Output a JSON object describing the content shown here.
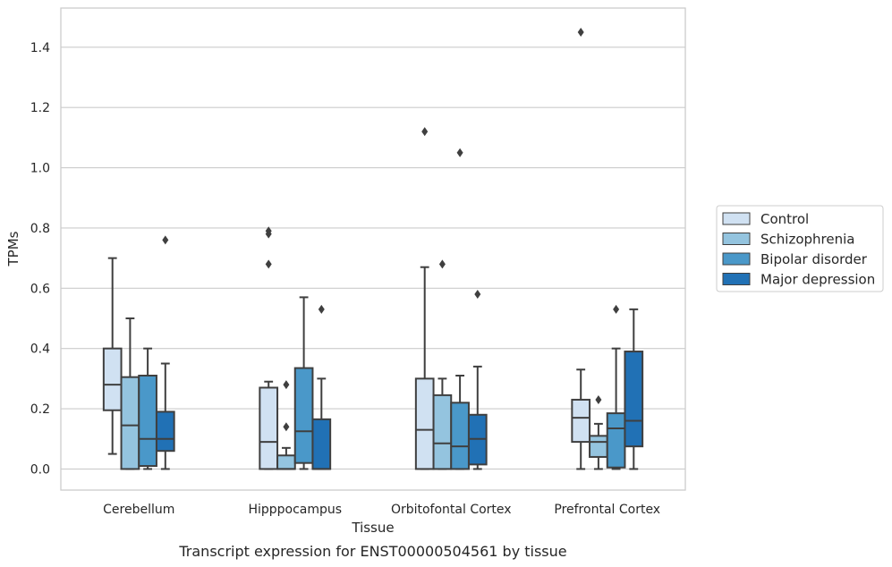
{
  "chart_data": {
    "type": "boxplot",
    "title": "",
    "caption": "Transcript expression for ENST00000504561 by tissue",
    "xlabel": "Tissue",
    "ylabel": "TPMs",
    "ylim": [
      -0.07,
      1.53
    ],
    "yticks": [
      0.0,
      0.2,
      0.4,
      0.6,
      0.8,
      1.0,
      1.2,
      1.4
    ],
    "ytick_labels": [
      "0.0",
      "0.2",
      "0.4",
      "0.6",
      "0.8",
      "1.0",
      "1.2",
      "1.4"
    ],
    "grid": "horizontal",
    "legend_position": "right",
    "categories": [
      "Cerebellum",
      "Hipppocampus",
      "Orbitofontal Cortex",
      "Prefrontal Cortex"
    ],
    "series": [
      {
        "name": "Control",
        "color": "#d0e1f2",
        "boxes": [
          {
            "whisker_low": 0.05,
            "q1": 0.195,
            "median": 0.28,
            "q3": 0.4,
            "whisker_high": 0.7,
            "outliers": []
          },
          {
            "whisker_low": 0.0,
            "q1": 0.0,
            "median": 0.09,
            "q3": 0.27,
            "whisker_high": 0.29,
            "outliers": [
              0.68,
              0.78,
              0.79
            ]
          },
          {
            "whisker_low": 0.0,
            "q1": 0.0,
            "median": 0.13,
            "q3": 0.3,
            "whisker_high": 0.67,
            "outliers": [
              1.12
            ]
          },
          {
            "whisker_low": 0.0,
            "q1": 0.09,
            "median": 0.17,
            "q3": 0.23,
            "whisker_high": 0.33,
            "outliers": [
              1.45
            ]
          }
        ]
      },
      {
        "name": "Schizophrenia",
        "color": "#94c4df",
        "boxes": [
          {
            "whisker_low": 0.0,
            "q1": 0.0,
            "median": 0.145,
            "q3": 0.305,
            "whisker_high": 0.5,
            "outliers": []
          },
          {
            "whisker_low": 0.0,
            "q1": 0.0,
            "median": 0.0,
            "q3": 0.045,
            "whisker_high": 0.07,
            "outliers": [
              0.14,
              0.28
            ]
          },
          {
            "whisker_low": 0.0,
            "q1": 0.0,
            "median": 0.085,
            "q3": 0.245,
            "whisker_high": 0.3,
            "outliers": [
              0.68
            ]
          },
          {
            "whisker_low": 0.0,
            "q1": 0.04,
            "median": 0.09,
            "q3": 0.11,
            "whisker_high": 0.15,
            "outliers": [
              0.23
            ]
          }
        ]
      },
      {
        "name": "Bipolar disorder",
        "color": "#4a98c9",
        "boxes": [
          {
            "whisker_low": 0.0,
            "q1": 0.01,
            "median": 0.1,
            "q3": 0.31,
            "whisker_high": 0.4,
            "outliers": []
          },
          {
            "whisker_low": 0.0,
            "q1": 0.02,
            "median": 0.125,
            "q3": 0.335,
            "whisker_high": 0.57,
            "outliers": []
          },
          {
            "whisker_low": 0.0,
            "q1": 0.0,
            "median": 0.075,
            "q3": 0.22,
            "whisker_high": 0.31,
            "outliers": [
              1.05
            ]
          },
          {
            "whisker_low": 0.0,
            "q1": 0.005,
            "median": 0.135,
            "q3": 0.185,
            "whisker_high": 0.4,
            "outliers": [
              0.53
            ]
          }
        ]
      },
      {
        "name": "Major depression",
        "color": "#2171b5",
        "boxes": [
          {
            "whisker_low": 0.0,
            "q1": 0.06,
            "median": 0.1,
            "q3": 0.19,
            "whisker_high": 0.35,
            "outliers": [
              0.76
            ]
          },
          {
            "whisker_low": 0.0,
            "q1": 0.0,
            "median": 0.0,
            "q3": 0.165,
            "whisker_high": 0.3,
            "outliers": [
              0.53
            ]
          },
          {
            "whisker_low": 0.0,
            "q1": 0.015,
            "median": 0.1,
            "q3": 0.18,
            "whisker_high": 0.34,
            "outliers": [
              0.58
            ]
          },
          {
            "whisker_low": 0.0,
            "q1": 0.075,
            "median": 0.16,
            "q3": 0.39,
            "whisker_high": 0.53,
            "outliers": []
          }
        ]
      }
    ]
  }
}
